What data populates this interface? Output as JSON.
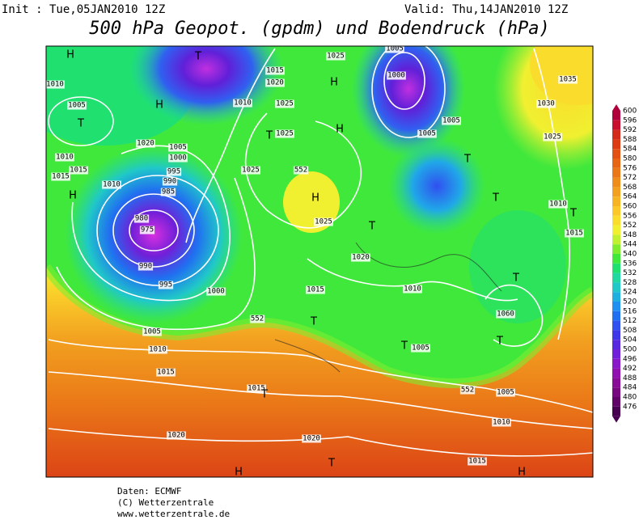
{
  "header": {
    "init": "Init : Tue,05JAN2010 12Z",
    "valid": "Valid: Thu,14JAN2010 12Z",
    "title": "500 hPa Geopot. (gpdm) und Bodendruck (hPa)"
  },
  "map": {
    "labels": [
      "H",
      "1010",
      "1005",
      "T",
      "1010",
      "1015",
      "1015",
      "T",
      "H",
      "1020",
      "1005",
      "1000",
      "995",
      "990",
      "1010",
      "985",
      "H",
      "980",
      "975",
      "990",
      "995",
      "1000",
      "1005",
      "1010",
      "1015",
      "1015",
      "T",
      "1020",
      "1020",
      "T",
      "H",
      "1015",
      "H",
      "1010",
      "1005",
      "552",
      "552",
      "1015",
      "T",
      "1020",
      "1025",
      "H",
      "552",
      "1025",
      "1025",
      "T",
      "1025",
      "1010",
      "1015",
      "1020",
      "1025",
      "H",
      "H",
      "T",
      "1010",
      "T",
      "1005",
      "1005",
      "1000",
      "1005",
      "1005",
      "T",
      "T",
      "1035",
      "1030",
      "1025",
      "1010",
      "T",
      "1015",
      "T",
      "1060",
      "T"
    ]
  },
  "colorbar": {
    "labels": [
      600,
      596,
      592,
      588,
      584,
      580,
      576,
      572,
      568,
      564,
      560,
      556,
      552,
      548,
      544,
      540,
      536,
      532,
      528,
      524,
      520,
      516,
      512,
      508,
      504,
      500,
      496,
      492,
      488,
      484,
      480,
      476
    ],
    "colors": [
      "#b0003c",
      "#c8102e",
      "#d42a1c",
      "#dc3c14",
      "#e25014",
      "#e66414",
      "#ea7818",
      "#ee8c1c",
      "#f2a020",
      "#f6b424",
      "#fac828",
      "#fadc2c",
      "#f0f030",
      "#c0f030",
      "#80ec30",
      "#40e83c",
      "#20e070",
      "#20d8a0",
      "#20c8c8",
      "#20b0e0",
      "#2090f0",
      "#2070f0",
      "#3050f0",
      "#4038e8",
      "#5828e0",
      "#7020d8",
      "#8818c8",
      "#9010b0",
      "#880c98",
      "#780880",
      "#600468",
      "#480050"
    ]
  },
  "footer": {
    "lines": [
      "Daten: ECMWF",
      "(C) Wetterzentrale",
      "www.wetterzentrale.de"
    ]
  }
}
